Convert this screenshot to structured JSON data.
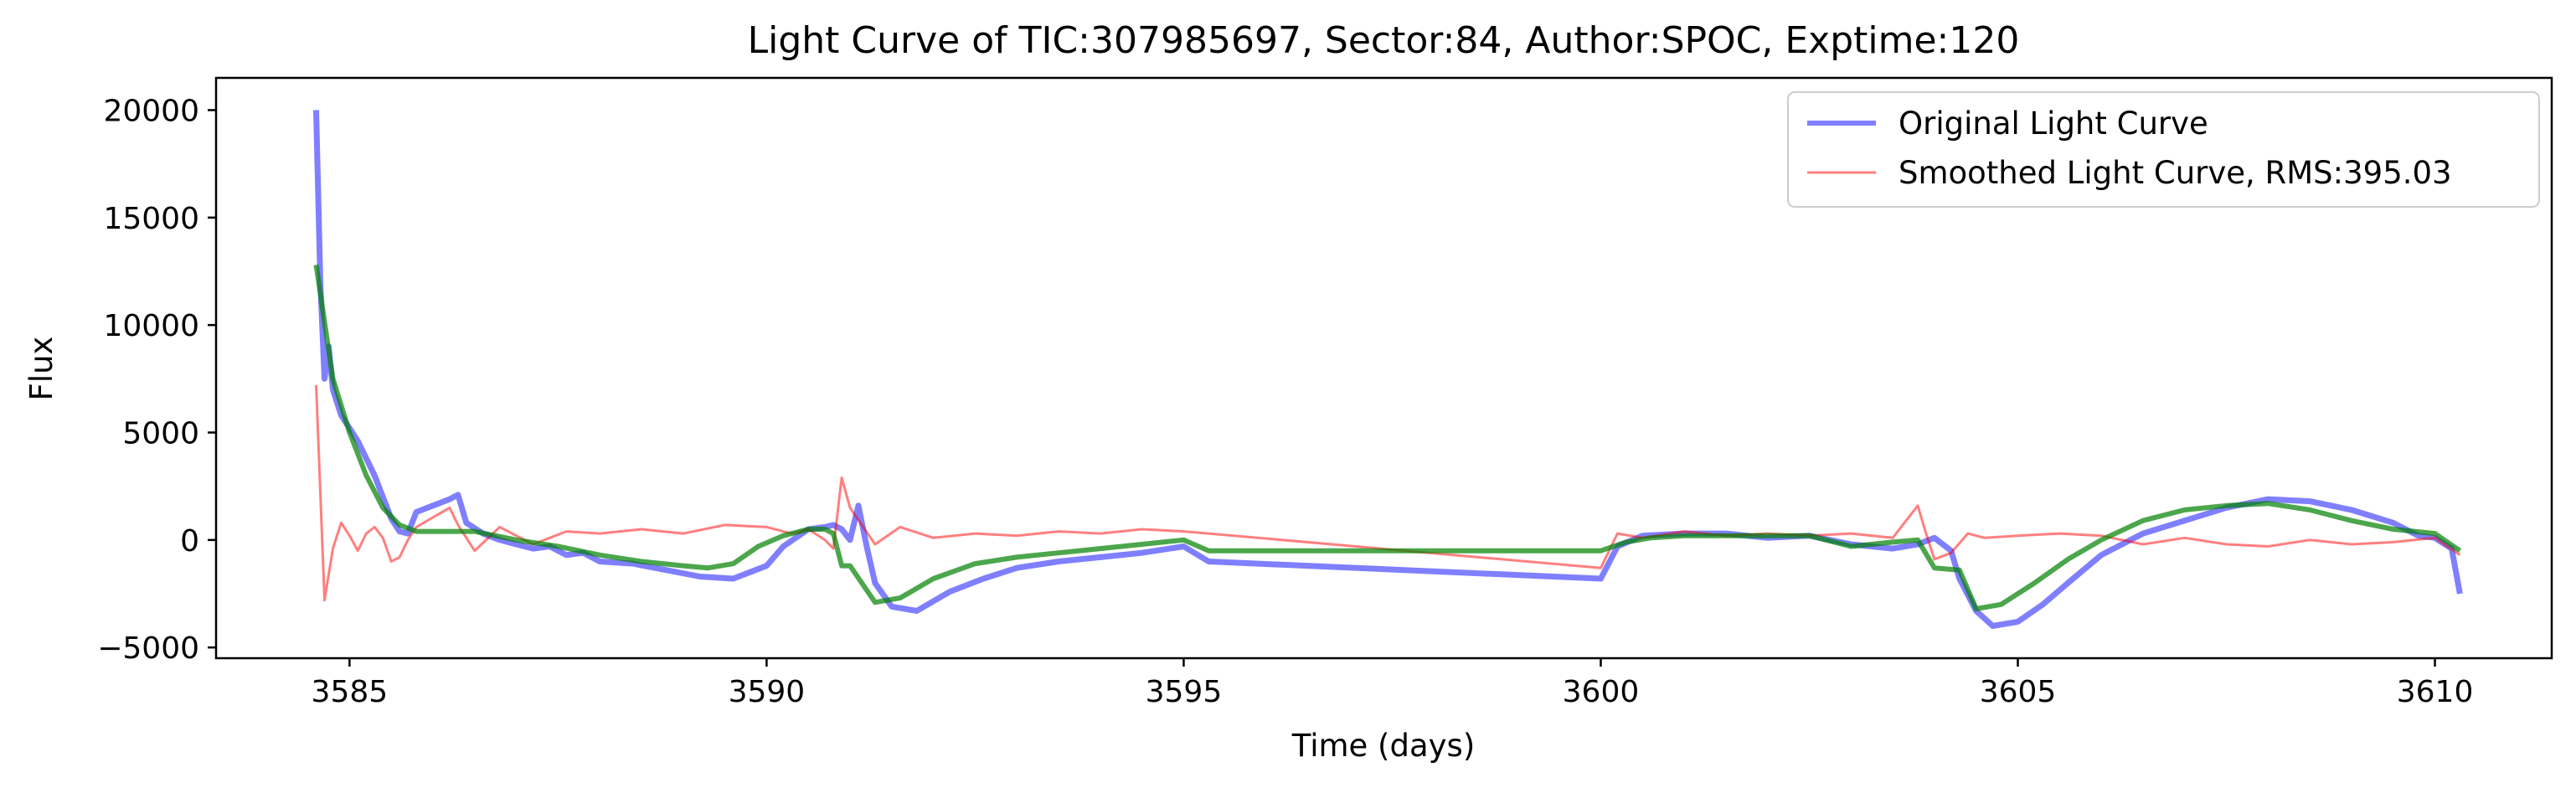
{
  "chart_data": {
    "type": "line",
    "title": "Light Curve of TIC:307985697, Sector:84, Author:SPOC, Exptime:120",
    "xlabel": "Time (days)",
    "ylabel": "Flux",
    "xlim": [
      3583.4,
      3611.4
    ],
    "ylim": [
      -5500,
      21500
    ],
    "xticks": [
      3585,
      3590,
      3595,
      3600,
      3605,
      3610
    ],
    "yticks": [
      -5000,
      0,
      5000,
      10000,
      15000,
      20000
    ],
    "grid": false,
    "legend_position": "top-right",
    "series": [
      {
        "name": "Original Light Curve",
        "color": "#0000ff",
        "x": [
          3584.6,
          3584.65,
          3584.7,
          3584.75,
          3584.8,
          3584.9,
          3585.0,
          3585.1,
          3585.2,
          3585.3,
          3585.4,
          3585.5,
          3585.6,
          3585.7,
          3585.8,
          3586.0,
          3586.2,
          3586.3,
          3586.4,
          3586.6,
          3586.8,
          3587.0,
          3587.2,
          3587.4,
          3587.6,
          3587.8,
          3588.0,
          3588.4,
          3588.8,
          3589.2,
          3589.6,
          3589.8,
          3590.0,
          3590.2,
          3590.5,
          3590.7,
          3590.8,
          3590.9,
          3591.0,
          3591.1,
          3591.2,
          3591.3,
          3591.5,
          3591.8,
          3592.2,
          3592.6,
          3593.0,
          3593.5,
          3594.0,
          3594.5,
          3595.0,
          3595.3,
          3600.0,
          3600.2,
          3600.5,
          3601.0,
          3601.5,
          3602.0,
          3602.5,
          3603.0,
          3603.5,
          3603.8,
          3604.0,
          3604.2,
          3604.3,
          3604.5,
          3604.7,
          3605.0,
          3605.3,
          3605.6,
          3606.0,
          3606.5,
          3607.0,
          3607.5,
          3608.0,
          3608.5,
          3609.0,
          3609.5,
          3609.8,
          3610.0,
          3610.2,
          3610.3
        ],
        "y": [
          20000,
          12000,
          7500,
          9000,
          7000,
          5800,
          5200,
          4600,
          3800,
          3000,
          2000,
          1000,
          400,
          300,
          1300,
          1600,
          1900,
          2100,
          800,
          300,
          0,
          -200,
          -400,
          -300,
          -700,
          -600,
          -1000,
          -1100,
          -1400,
          -1700,
          -1800,
          -1500,
          -1200,
          -300,
          500,
          600,
          700,
          500,
          0,
          1600,
          -300,
          -2000,
          -3100,
          -3300,
          -2400,
          -1800,
          -1300,
          -1000,
          -800,
          -600,
          -300,
          -1000,
          -1800,
          -300,
          200,
          300,
          300,
          100,
          200,
          -200,
          -400,
          -200,
          100,
          -500,
          -1800,
          -3300,
          -4000,
          -3800,
          -3000,
          -2000,
          -700,
          300,
          900,
          1500,
          1900,
          1800,
          1400,
          800,
          200,
          100,
          -400,
          -2500
        ]
      },
      {
        "name": "Smoothed Light Curve, RMS:395.03",
        "color": "#ff0000",
        "x": [
          3584.6,
          3584.7,
          3584.8,
          3584.9,
          3585.0,
          3585.1,
          3585.2,
          3585.3,
          3585.4,
          3585.5,
          3585.6,
          3585.7,
          3585.8,
          3586.2,
          3586.3,
          3586.5,
          3586.8,
          3587.2,
          3587.6,
          3588.0,
          3588.5,
          3589.0,
          3589.5,
          3590.0,
          3590.3,
          3590.5,
          3590.7,
          3590.8,
          3590.9,
          3591.0,
          3591.3,
          3591.6,
          3592.0,
          3592.5,
          3593.0,
          3593.5,
          3594.0,
          3594.5,
          3595.0,
          3595.3,
          3600.0,
          3600.2,
          3600.5,
          3601.0,
          3601.5,
          3602.0,
          3602.5,
          3603.0,
          3603.5,
          3603.8,
          3603.9,
          3604.0,
          3604.2,
          3604.4,
          3604.6,
          3605.0,
          3605.5,
          3606.0,
          3606.5,
          3607.0,
          3607.5,
          3608.0,
          3608.5,
          3609.0,
          3609.5,
          3610.0,
          3610.3
        ],
        "y": [
          7200,
          -2800,
          -400,
          800,
          200,
          -500,
          300,
          600,
          100,
          -1000,
          -800,
          0,
          600,
          1500,
          700,
          -500,
          600,
          -200,
          400,
          300,
          500,
          300,
          700,
          600,
          300,
          500,
          0,
          -400,
          2900,
          1500,
          -200,
          600,
          100,
          300,
          200,
          400,
          300,
          500,
          400,
          300,
          -1300,
          300,
          100,
          400,
          200,
          300,
          200,
          300,
          100,
          1600,
          300,
          -900,
          -600,
          300,
          100,
          200,
          300,
          200,
          -200,
          100,
          -200,
          -300,
          0,
          -200,
          -100,
          100,
          -700
        ]
      },
      {
        "name": "",
        "color": "#008000",
        "x": [
          3584.6,
          3584.8,
          3585.0,
          3585.2,
          3585.4,
          3585.6,
          3585.8,
          3586.2,
          3586.5,
          3587.0,
          3587.5,
          3588.0,
          3588.5,
          3589.0,
          3589.3,
          3589.6,
          3589.9,
          3590.2,
          3590.5,
          3590.7,
          3590.8,
          3590.9,
          3591.0,
          3591.3,
          3591.6,
          3592.0,
          3592.5,
          3593.0,
          3593.5,
          3594.0,
          3594.5,
          3595.0,
          3595.3,
          3600.0,
          3600.3,
          3600.6,
          3601.0,
          3601.5,
          3602.0,
          3602.5,
          3603.0,
          3603.5,
          3603.8,
          3604.0,
          3604.3,
          3604.5,
          3604.8,
          3605.2,
          3605.6,
          3606.0,
          3606.5,
          3607.0,
          3607.5,
          3608.0,
          3608.5,
          3609.0,
          3609.5,
          3610.0,
          3610.3
        ],
        "y": [
          12800,
          7500,
          5000,
          3000,
          1500,
          700,
          400,
          400,
          400,
          0,
          -300,
          -700,
          -1000,
          -1200,
          -1300,
          -1100,
          -300,
          200,
          500,
          500,
          300,
          -1200,
          -1200,
          -2900,
          -2700,
          -1800,
          -1100,
          -800,
          -600,
          -400,
          -200,
          0,
          -500,
          -500,
          -100,
          100,
          200,
          200,
          200,
          200,
          -300,
          -100,
          0,
          -1300,
          -1400,
          -3200,
          -3000,
          -2000,
          -900,
          0,
          900,
          1400,
          1600,
          1700,
          1400,
          900,
          500,
          300,
          -500
        ]
      }
    ]
  }
}
